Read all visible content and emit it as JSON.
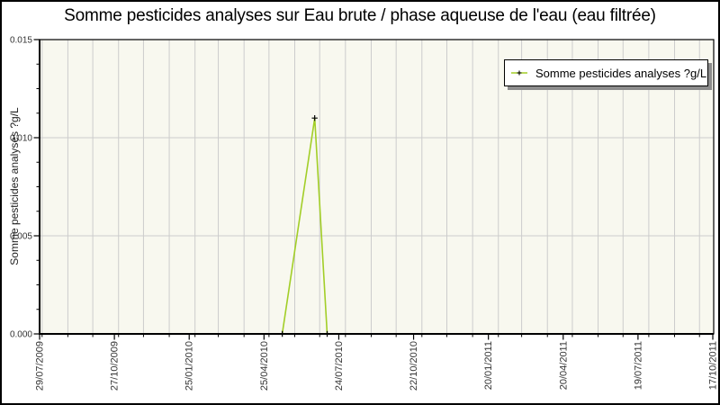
{
  "chart_data": {
    "type": "line",
    "title": "Somme pesticides analyses sur Eau brute / phase aqueuse de l'eau (eau filtrée)",
    "ylabel": "Somme pesticides analyses ?g/L",
    "xlabel": "",
    "x_tick_labels": [
      "29/07/2009",
      "27/10/2009",
      "25/01/2010",
      "25/04/2010",
      "24/07/2010",
      "22/10/2010",
      "20/01/2011",
      "20/04/2011",
      "19/07/2011",
      "17/10/2011"
    ],
    "y_tick_labels": [
      "0.000",
      "0.005",
      "0.010",
      "0.015"
    ],
    "ylim": [
      0,
      0.015
    ],
    "x_range": [
      "29/07/2009",
      "17/10/2011"
    ],
    "grid": {
      "vertical": "monthly",
      "horizontal": "at-major-y-ticks"
    },
    "minor_ticks": {
      "x": "monthly",
      "y_per_interval": 3
    },
    "legend": {
      "label": "Somme pesticides analyses ?g/L",
      "position": "top-right",
      "marker": "plus-on-line"
    },
    "series": [
      {
        "name": "Somme pesticides analyses ?g/L",
        "color": "#a2ce27",
        "marker": "plus",
        "marker_color": "#000000",
        "points": [
          {
            "date": "17/05/2010",
            "value": 0.0
          },
          {
            "date": "25/06/2010",
            "value": 0.011
          },
          {
            "date": "10/07/2010",
            "value": 0.0
          }
        ]
      }
    ]
  },
  "colors": {
    "frame_border": "#000000",
    "background": "#ffffff",
    "plot_background": "#f8f8ef",
    "gridline": "#cccccc",
    "axis": "#000000",
    "tick_label": "#333333",
    "legend_border": "#000000",
    "legend_background": "#ffffff",
    "legend_shadow": "#8c8c8c",
    "series_line": "#a2ce27"
  }
}
